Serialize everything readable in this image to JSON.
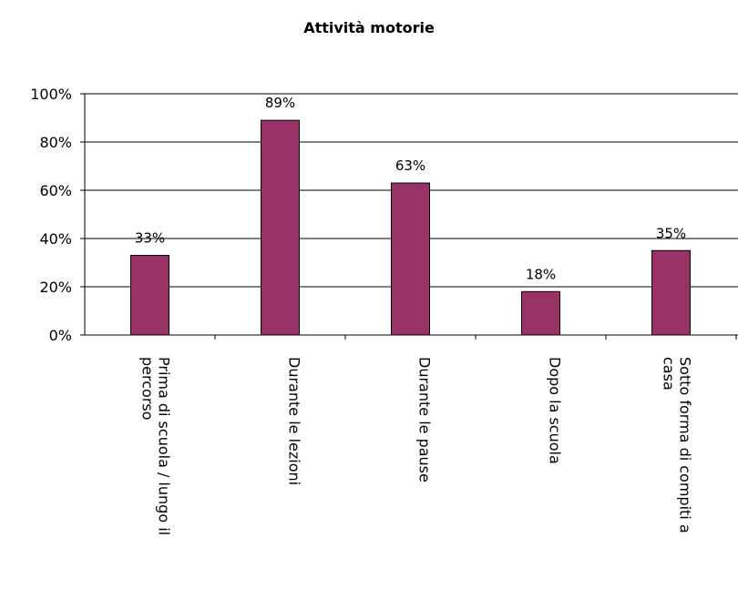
{
  "chart_data": {
    "type": "bar",
    "title": "Attività motorie",
    "categories": [
      [
        "Prima di scuola / lungo il",
        "percorso"
      ],
      [
        "Durante le lezioni"
      ],
      [
        "Durante le pause"
      ],
      [
        "Dopo la scuola"
      ],
      [
        "Sotto forma di compiti a",
        "casa"
      ]
    ],
    "values": [
      33,
      89,
      63,
      18,
      35
    ],
    "data_labels": [
      "33%",
      "89%",
      "63%",
      "18%",
      "35%"
    ],
    "yticks": [
      "0%",
      "20%",
      "40%",
      "60%",
      "80%",
      "100%"
    ],
    "ylim": [
      0,
      100
    ],
    "grid": true,
    "bar_color": "#993366"
  }
}
